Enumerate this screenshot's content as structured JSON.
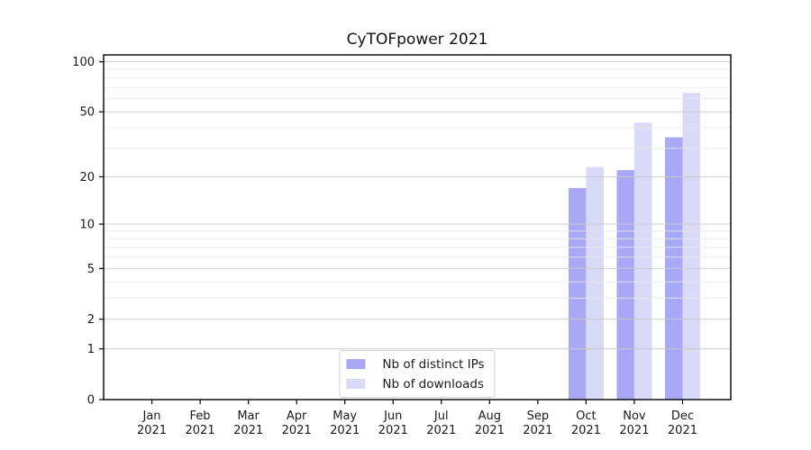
{
  "chart_data": {
    "type": "bar",
    "title": "CyTOFpower 2021",
    "categories": [
      "Jan",
      "Feb",
      "Mar",
      "Apr",
      "May",
      "Jun",
      "Jul",
      "Aug",
      "Sep",
      "Oct",
      "Nov",
      "Dec"
    ],
    "category_year": "2021",
    "series": [
      {
        "name": "Nb of distinct IPs",
        "color": "#a8a8f6",
        "values": [
          0,
          0,
          0,
          0,
          0,
          0,
          0,
          0,
          0,
          17,
          22,
          35
        ]
      },
      {
        "name": "Nb of downloads",
        "color": "#d9d9f8",
        "values": [
          0,
          0,
          0,
          0,
          0,
          0,
          0,
          0,
          0,
          23,
          43,
          65
        ]
      }
    ],
    "xlabel": "",
    "ylabel": "",
    "yscale": "log1p",
    "ylim": [
      0,
      110
    ],
    "yticks": [
      0,
      1,
      2,
      5,
      10,
      20,
      50,
      100
    ],
    "yticks_minor": [
      3,
      4,
      6,
      7,
      8,
      9,
      30,
      40,
      60,
      70,
      80,
      90
    ],
    "grid": true,
    "legend_position": "lower center"
  },
  "colors": {
    "axis": "#000000",
    "grid_major": "#c9c9c9",
    "grid_minor": "#e9e9e9",
    "tick_text": "#1a1a1a",
    "background": "#ffffff"
  }
}
